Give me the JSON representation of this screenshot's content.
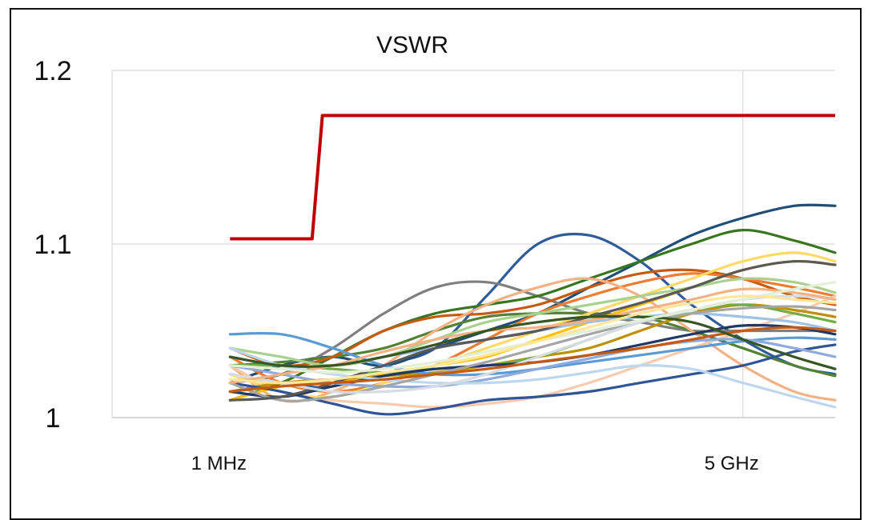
{
  "chart_data": {
    "type": "line",
    "title": "VSWR",
    "xlabel": "",
    "ylabel": "",
    "x_tick_labels": [
      "1 MHz",
      "5 GHz"
    ],
    "y_tick_labels": [
      "1.2",
      "1.1",
      "1"
    ],
    "y_ticks": [
      1.2,
      1.1,
      1.0
    ],
    "x_ticks": [
      0,
      1
    ],
    "xlim": [
      -0.23,
      1.18
    ],
    "ylim": [
      1.0,
      1.2
    ],
    "grid": true,
    "legend": "none",
    "limit_line": {
      "color": "#c00000",
      "x": [
        0,
        0.16,
        0.18,
        1.18
      ],
      "y": [
        1.103,
        1.103,
        1.174,
        1.174
      ]
    },
    "series": [
      {
        "color": "#2e5c9a",
        "x": [
          0,
          0.1,
          0.2,
          0.3,
          0.4,
          0.5,
          0.6,
          0.7,
          0.8,
          0.9,
          1.0,
          1.1,
          1.18
        ],
        "y": [
          1.025,
          1.02,
          1.018,
          1.03,
          1.04,
          1.07,
          1.1,
          1.105,
          1.09,
          1.065,
          1.045,
          1.03,
          1.025
        ]
      },
      {
        "color": "#1f4e79",
        "x": [
          0,
          0.1,
          0.2,
          0.3,
          0.4,
          0.5,
          0.6,
          0.7,
          0.8,
          0.9,
          1.0,
          1.1,
          1.18
        ],
        "y": [
          1.02,
          1.03,
          1.035,
          1.03,
          1.04,
          1.05,
          1.06,
          1.075,
          1.09,
          1.105,
          1.115,
          1.122,
          1.122
        ]
      },
      {
        "color": "#7f7f7f",
        "x": [
          0,
          0.1,
          0.2,
          0.3,
          0.4,
          0.5,
          0.6,
          0.7,
          0.8,
          0.9,
          1.0,
          1.1,
          1.18
        ],
        "y": [
          1.02,
          1.025,
          1.04,
          1.06,
          1.075,
          1.078,
          1.07,
          1.06,
          1.055,
          1.05,
          1.05,
          1.05,
          1.05
        ]
      },
      {
        "color": "#38761d",
        "x": [
          0,
          0.1,
          0.2,
          0.3,
          0.4,
          0.5,
          0.6,
          0.7,
          0.8,
          0.9,
          1.0,
          1.1,
          1.18
        ],
        "y": [
          1.01,
          1.02,
          1.035,
          1.05,
          1.06,
          1.065,
          1.07,
          1.08,
          1.09,
          1.1,
          1.108,
          1.102,
          1.095
        ]
      },
      {
        "color": "#548235",
        "x": [
          0,
          0.1,
          0.2,
          0.3,
          0.4,
          0.5,
          0.6,
          0.7,
          0.8,
          0.9,
          1.0,
          1.1,
          1.18
        ],
        "y": [
          1.03,
          1.032,
          1.035,
          1.04,
          1.05,
          1.058,
          1.06,
          1.06,
          1.058,
          1.05,
          1.04,
          1.03,
          1.024
        ]
      },
      {
        "color": "#c55a11",
        "x": [
          0,
          0.1,
          0.2,
          0.3,
          0.4,
          0.5,
          0.6,
          0.7,
          0.8,
          0.9,
          1.0,
          1.1,
          1.18
        ],
        "y": [
          1.04,
          1.03,
          1.035,
          1.05,
          1.058,
          1.06,
          1.065,
          1.075,
          1.083,
          1.085,
          1.08,
          1.07,
          1.065
        ]
      },
      {
        "color": "#ed7d31",
        "x": [
          0,
          0.1,
          0.2,
          0.3,
          0.4,
          0.5,
          0.6,
          0.7,
          0.8,
          0.9,
          1.0,
          1.1,
          1.18
        ],
        "y": [
          1.035,
          1.02,
          1.015,
          1.02,
          1.03,
          1.045,
          1.06,
          1.07,
          1.078,
          1.083,
          1.08,
          1.075,
          1.07
        ]
      },
      {
        "color": "#f4b183",
        "x": [
          0,
          0.1,
          0.2,
          0.3,
          0.4,
          0.5,
          0.6,
          0.7,
          0.8,
          0.9,
          1.0,
          1.1,
          1.18
        ],
        "y": [
          1.03,
          1.01,
          1.015,
          1.03,
          1.05,
          1.065,
          1.075,
          1.08,
          1.07,
          1.05,
          1.03,
          1.015,
          1.01
        ]
      },
      {
        "color": "#f8cbad",
        "x": [
          0,
          0.1,
          0.2,
          0.3,
          0.4,
          0.5,
          0.6,
          0.7,
          0.8,
          0.9,
          1.0,
          1.1,
          1.18
        ],
        "y": [
          1.03,
          1.015,
          1.01,
          1.008,
          1.006,
          1.008,
          1.012,
          1.02,
          1.03,
          1.04,
          1.05,
          1.06,
          1.07
        ]
      },
      {
        "color": "#ffc000",
        "x": [
          0,
          0.1,
          0.2,
          0.3,
          0.4,
          0.5,
          0.6,
          0.7,
          0.8,
          0.9,
          1.0,
          1.1,
          1.18
        ],
        "y": [
          1.01,
          1.018,
          1.02,
          1.025,
          1.03,
          1.035,
          1.045,
          1.055,
          1.065,
          1.075,
          1.085,
          1.09,
          1.088
        ]
      },
      {
        "color": "#ffd966",
        "x": [
          0,
          0.1,
          0.2,
          0.3,
          0.4,
          0.5,
          0.6,
          0.7,
          0.8,
          0.9,
          1.0,
          1.1,
          1.18
        ],
        "y": [
          1.025,
          1.015,
          1.012,
          1.02,
          1.03,
          1.04,
          1.05,
          1.06,
          1.07,
          1.08,
          1.09,
          1.095,
          1.09
        ]
      },
      {
        "color": "#bf9000",
        "x": [
          0,
          0.1,
          0.2,
          0.3,
          0.4,
          0.5,
          0.6,
          0.7,
          0.8,
          0.9,
          1.0,
          1.1,
          1.18
        ],
        "y": [
          1.015,
          1.02,
          1.022,
          1.024,
          1.026,
          1.03,
          1.035,
          1.04,
          1.05,
          1.06,
          1.065,
          1.062,
          1.058
        ]
      },
      {
        "color": "#a9d18e",
        "x": [
          0,
          0.1,
          0.2,
          0.3,
          0.4,
          0.5,
          0.6,
          0.7,
          0.8,
          0.9,
          1.0,
          1.1,
          1.18
        ],
        "y": [
          1.04,
          1.035,
          1.03,
          1.035,
          1.045,
          1.055,
          1.06,
          1.065,
          1.07,
          1.075,
          1.08,
          1.078,
          1.072
        ]
      },
      {
        "color": "#70ad47",
        "x": [
          0,
          0.1,
          0.2,
          0.3,
          0.4,
          0.5,
          0.6,
          0.7,
          0.8,
          0.9,
          1.0,
          1.1,
          1.18
        ],
        "y": [
          1.03,
          1.03,
          1.028,
          1.026,
          1.028,
          1.03,
          1.035,
          1.045,
          1.055,
          1.062,
          1.065,
          1.06,
          1.055
        ]
      },
      {
        "color": "#9dc3e6",
        "x": [
          0,
          0.1,
          0.2,
          0.3,
          0.4,
          0.5,
          0.6,
          0.7,
          0.8,
          0.9,
          1.0,
          1.1,
          1.18
        ],
        "y": [
          1.035,
          1.03,
          1.03,
          1.035,
          1.04,
          1.045,
          1.05,
          1.055,
          1.058,
          1.06,
          1.058,
          1.055,
          1.05
        ]
      },
      {
        "color": "#5b9bd5",
        "x": [
          0,
          0.1,
          0.2,
          0.3,
          0.4,
          0.5,
          0.6,
          0.7,
          0.8,
          0.9,
          1.0,
          1.1,
          1.18
        ],
        "y": [
          1.048,
          1.048,
          1.04,
          1.03,
          1.025,
          1.025,
          1.028,
          1.032,
          1.036,
          1.04,
          1.044,
          1.046,
          1.045
        ]
      },
      {
        "color": "#2f5597",
        "x": [
          0,
          0.1,
          0.2,
          0.3,
          0.4,
          0.5,
          0.6,
          0.7,
          0.8,
          0.9,
          1.0,
          1.1,
          1.18
        ],
        "y": [
          1.02,
          1.015,
          1.008,
          1.002,
          1.005,
          1.01,
          1.012,
          1.015,
          1.02,
          1.025,
          1.03,
          1.038,
          1.042
        ]
      },
      {
        "color": "#203864",
        "x": [
          0,
          0.1,
          0.2,
          0.3,
          0.4,
          0.5,
          0.6,
          0.7,
          0.8,
          0.9,
          1.0,
          1.1,
          1.18
        ],
        "y": [
          1.015,
          1.012,
          1.018,
          1.024,
          1.028,
          1.03,
          1.032,
          1.036,
          1.042,
          1.048,
          1.053,
          1.052,
          1.048
        ]
      },
      {
        "color": "#8faadc",
        "x": [
          0,
          0.1,
          0.2,
          0.3,
          0.4,
          0.5,
          0.6,
          0.7,
          0.8,
          0.9,
          1.0,
          1.1,
          1.18
        ],
        "y": [
          1.03,
          1.025,
          1.02,
          1.018,
          1.018,
          1.022,
          1.028,
          1.034,
          1.04,
          1.044,
          1.045,
          1.04,
          1.035
        ]
      },
      {
        "color": "#bdd7ee",
        "x": [
          0,
          0.1,
          0.2,
          0.3,
          0.4,
          0.5,
          0.6,
          0.7,
          0.8,
          0.9,
          1.0,
          1.1,
          1.18
        ],
        "y": [
          1.04,
          1.03,
          1.025,
          1.022,
          1.02,
          1.02,
          1.022,
          1.026,
          1.03,
          1.028,
          1.02,
          1.012,
          1.006
        ]
      },
      {
        "color": "#a5a5a5",
        "x": [
          0,
          0.1,
          0.2,
          0.3,
          0.4,
          0.5,
          0.6,
          0.7,
          0.8,
          0.9,
          1.0,
          1.1,
          1.18
        ],
        "y": [
          1.02,
          1.01,
          1.012,
          1.018,
          1.025,
          1.032,
          1.04,
          1.048,
          1.055,
          1.06,
          1.063,
          1.064,
          1.062
        ]
      },
      {
        "color": "#595959",
        "x": [
          0,
          0.1,
          0.2,
          0.3,
          0.4,
          0.5,
          0.6,
          0.7,
          0.8,
          0.9,
          1.0,
          1.1,
          1.18
        ],
        "y": [
          1.01,
          1.012,
          1.02,
          1.03,
          1.04,
          1.045,
          1.05,
          1.058,
          1.066,
          1.075,
          1.085,
          1.09,
          1.088
        ]
      },
      {
        "color": "#d6dce5",
        "x": [
          0,
          0.1,
          0.2,
          0.3,
          0.4,
          0.5,
          0.6,
          0.7,
          0.8,
          0.9,
          1.0,
          1.1,
          1.18
        ],
        "y": [
          1.025,
          1.02,
          1.015,
          1.015,
          1.018,
          1.025,
          1.035,
          1.045,
          1.055,
          1.062,
          1.068,
          1.07,
          1.068
        ]
      },
      {
        "color": "#f4b183",
        "x": [
          0,
          0.1,
          0.2,
          0.3,
          0.4,
          0.5,
          0.6,
          0.7,
          0.8,
          0.9,
          1.0,
          1.1,
          1.18
        ],
        "y": [
          1.02,
          1.025,
          1.03,
          1.038,
          1.045,
          1.05,
          1.052,
          1.056,
          1.062,
          1.068,
          1.074,
          1.072,
          1.068
        ]
      },
      {
        "color": "#c55a11",
        "x": [
          0,
          0.1,
          0.2,
          0.3,
          0.4,
          0.5,
          0.6,
          0.7,
          0.8,
          0.9,
          1.0,
          1.1,
          1.18
        ],
        "y": [
          1.015,
          1.018,
          1.02,
          1.022,
          1.025,
          1.028,
          1.032,
          1.036,
          1.04,
          1.045,
          1.05,
          1.052,
          1.05
        ]
      },
      {
        "color": "#375623",
        "x": [
          0,
          0.1,
          0.2,
          0.3,
          0.4,
          0.5,
          0.6,
          0.7,
          0.8,
          0.9,
          1.0,
          1.1,
          1.18
        ],
        "y": [
          1.035,
          1.03,
          1.03,
          1.035,
          1.042,
          1.05,
          1.055,
          1.058,
          1.058,
          1.055,
          1.045,
          1.035,
          1.028
        ]
      },
      {
        "color": "#e2efd9",
        "x": [
          0,
          0.1,
          0.2,
          0.3,
          0.4,
          0.5,
          0.6,
          0.7,
          0.8,
          0.9,
          1.0,
          1.1,
          1.18
        ],
        "y": [
          1.03,
          1.028,
          1.026,
          1.028,
          1.032,
          1.038,
          1.044,
          1.05,
          1.056,
          1.062,
          1.068,
          1.074,
          1.078
        ]
      },
      {
        "color": "#ffe699",
        "x": [
          0,
          0.1,
          0.2,
          0.3,
          0.4,
          0.5,
          0.6,
          0.7,
          0.8,
          0.9,
          1.0,
          1.1,
          1.18
        ],
        "y": [
          1.022,
          1.02,
          1.022,
          1.026,
          1.03,
          1.036,
          1.044,
          1.052,
          1.06,
          1.066,
          1.07,
          1.068,
          1.066
        ]
      }
    ]
  }
}
